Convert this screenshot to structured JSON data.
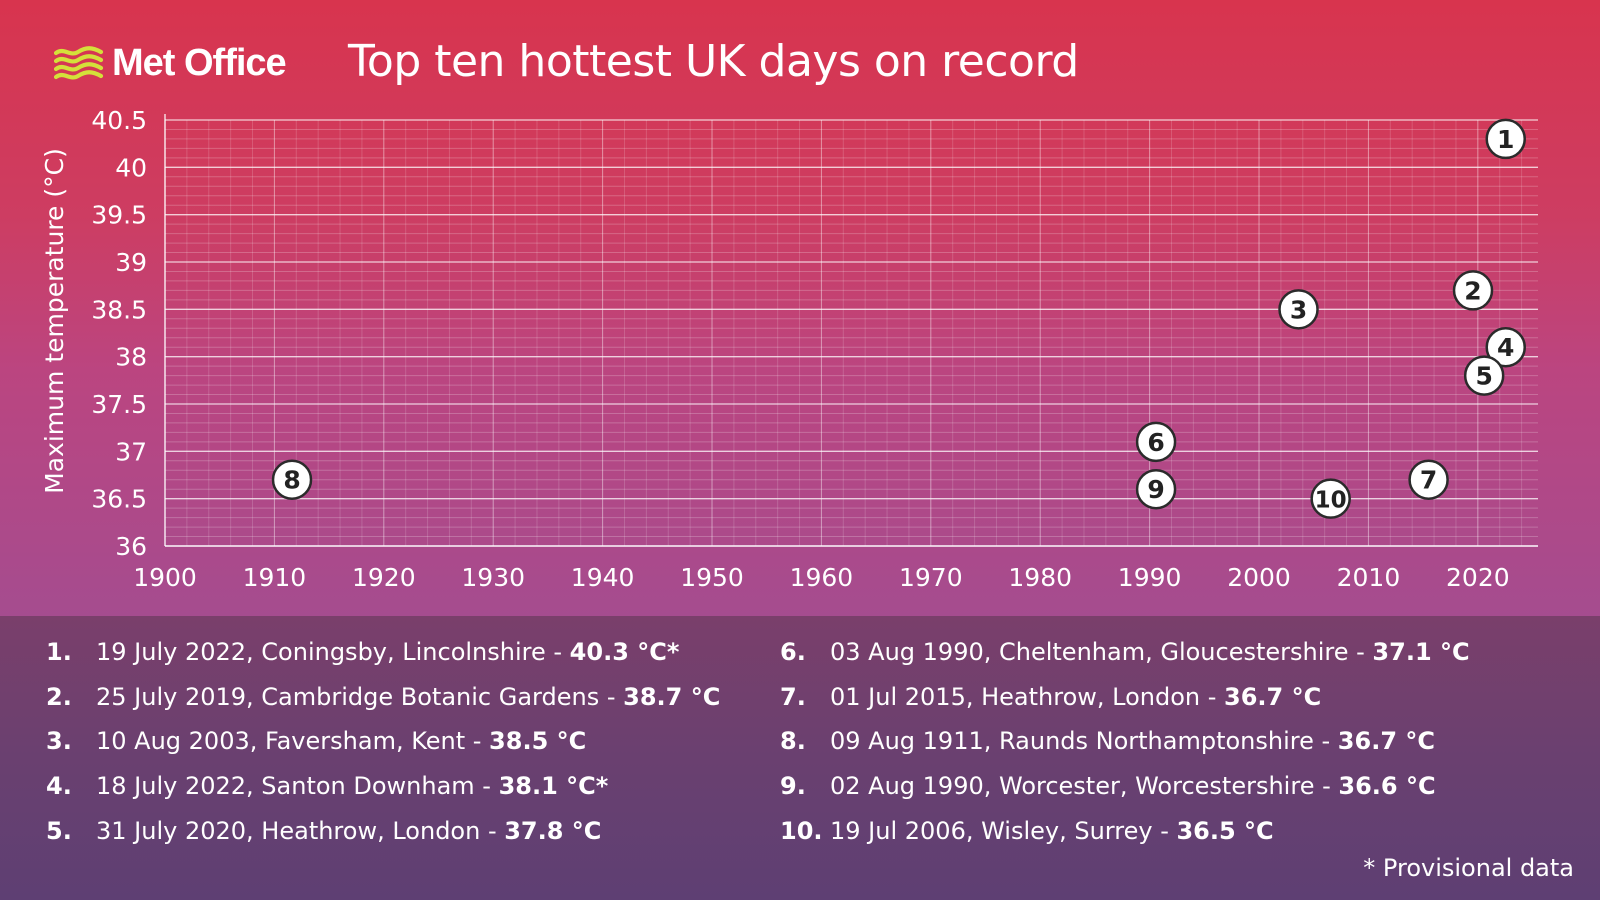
{
  "header": {
    "logo_text": "Met Office",
    "title": "Top ten hottest UK days on record"
  },
  "colors": {
    "logo_waves": "#d4e03a",
    "marker_fill": "#ffffff",
    "marker_stroke": "#2b2b2b",
    "marker_text": "#222222"
  },
  "chart_data": {
    "type": "scatter",
    "title": "Top ten hottest UK days on record",
    "xlabel": "",
    "ylabel": "Maximum temperature (°C)",
    "xlim": [
      1900,
      2023
    ],
    "ylim": [
      36,
      40.5
    ],
    "x_ticks": [
      "1900",
      "1910",
      "1920",
      "1930",
      "1940",
      "1950",
      "1960",
      "1970",
      "1980",
      "1990",
      "2000",
      "2010",
      "2020"
    ],
    "y_ticks": [
      "36",
      "36.5",
      "37",
      "37.5",
      "38",
      "38.5",
      "39",
      "39.5",
      "40",
      "40.5"
    ],
    "grid": true,
    "points": [
      {
        "label": "1",
        "x": 2022.55,
        "y": 40.3
      },
      {
        "label": "2",
        "x": 2019.56,
        "y": 38.7
      },
      {
        "label": "3",
        "x": 2003.61,
        "y": 38.5
      },
      {
        "label": "4",
        "x": 2022.55,
        "y": 38.1
      },
      {
        "label": "5",
        "x": 2020.58,
        "y": 37.8
      },
      {
        "label": "6",
        "x": 1990.59,
        "y": 37.1
      },
      {
        "label": "7",
        "x": 2015.5,
        "y": 36.7
      },
      {
        "label": "8",
        "x": 1911.61,
        "y": 36.7
      },
      {
        "label": "9",
        "x": 1990.59,
        "y": 36.6
      },
      {
        "label": "10",
        "x": 2006.55,
        "y": 36.5
      }
    ]
  },
  "legend": [
    {
      "num": "1.",
      "text": "19 July 2022, Coningsby, Lincolnshire - ",
      "temp": "40.3 °C*"
    },
    {
      "num": "2.",
      "text": "25 July 2019, Cambridge Botanic Gardens - ",
      "temp": "38.7 °C"
    },
    {
      "num": "3.",
      "text": "10 Aug 2003, Faversham, Kent - ",
      "temp": "38.5 °C"
    },
    {
      "num": "4.",
      "text": "18 July 2022, Santon Downham - ",
      "temp": "38.1 °C*"
    },
    {
      "num": "5.",
      "text": "31 July 2020, Heathrow, London - ",
      "temp": "37.8 °C"
    },
    {
      "num": "6.",
      "text": "03 Aug 1990, Cheltenham, Gloucestershire - ",
      "temp": "37.1 °C"
    },
    {
      "num": "7.",
      "text": "01 Jul 2015, Heathrow, London - ",
      "temp": "36.7 °C"
    },
    {
      "num": "8.",
      "text": "09 Aug 1911, Raunds Northamptonshire - ",
      "temp": "36.7 °C"
    },
    {
      "num": "9.",
      "text": "02 Aug 1990, Worcester, Worcestershire - ",
      "temp": "36.6 °C"
    },
    {
      "num": "10.",
      "text": "19 Jul 2006, Wisley, Surrey - ",
      "temp": "36.5 °C"
    }
  ],
  "footnote": "* Provisional data"
}
